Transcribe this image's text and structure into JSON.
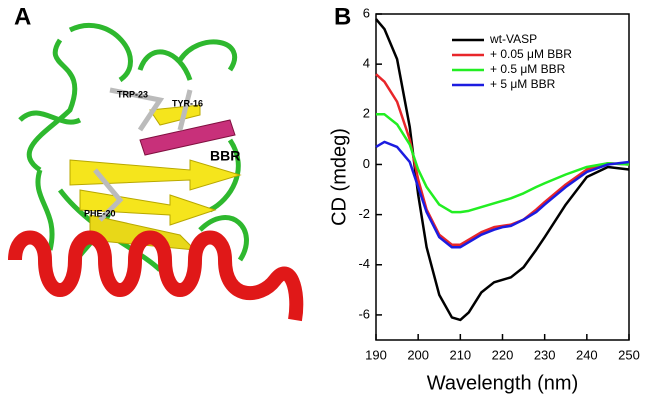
{
  "panels": [
    "A",
    "B"
  ],
  "structure": {
    "labels": [
      "TRP-23",
      "TYR-16",
      "BBR",
      "PHE-20"
    ]
  },
  "chart_data": {
    "type": "line",
    "x_label": "Wavelength (nm)",
    "y_label": "CD (mdeg)",
    "x": [
      190,
      192,
      195,
      198,
      200,
      202,
      205,
      208,
      210,
      212,
      215,
      218,
      220,
      222,
      225,
      228,
      230,
      235,
      240,
      245,
      250
    ],
    "series": [
      {
        "name": "wt-VASP",
        "color": "#000000",
        "values": [
          5.8,
          5.4,
          4.2,
          1.5,
          -1.2,
          -3.3,
          -5.2,
          -6.1,
          -6.2,
          -5.9,
          -5.1,
          -4.7,
          -4.6,
          -4.5,
          -4.1,
          -3.4,
          -2.9,
          -1.6,
          -0.5,
          -0.1,
          -0.2
        ]
      },
      {
        "name": "+ 0.05 μM BBR",
        "color": "#e8262a",
        "values": [
          3.6,
          3.3,
          2.5,
          1.0,
          -0.6,
          -1.8,
          -2.8,
          -3.2,
          -3.2,
          -3.0,
          -2.7,
          -2.5,
          -2.45,
          -2.4,
          -2.2,
          -1.8,
          -1.5,
          -0.8,
          -0.2,
          0.05,
          0.0
        ]
      },
      {
        "name": "+ 0.5 μM BBR",
        "color": "#22ee22",
        "values": [
          2.0,
          2.0,
          1.6,
          0.8,
          -0.2,
          -0.9,
          -1.6,
          -1.9,
          -1.9,
          -1.85,
          -1.7,
          -1.55,
          -1.45,
          -1.35,
          -1.15,
          -0.9,
          -0.75,
          -0.4,
          -0.1,
          0.05,
          0.0
        ]
      },
      {
        "name": "+ 5 μM BBR",
        "color": "#1c1ce0",
        "values": [
          0.7,
          0.9,
          0.7,
          0.1,
          -0.9,
          -1.9,
          -2.9,
          -3.3,
          -3.3,
          -3.1,
          -2.8,
          -2.6,
          -2.5,
          -2.45,
          -2.2,
          -1.9,
          -1.6,
          -0.9,
          -0.3,
          0.0,
          0.1
        ]
      }
    ],
    "xlim": [
      190,
      250
    ],
    "xticks": [
      190,
      200,
      210,
      220,
      230,
      240,
      250
    ],
    "ylim": [
      -7,
      6
    ],
    "yticks": [
      -6,
      -4,
      -2,
      0,
      2,
      4,
      6
    ],
    "legend": "upper right"
  }
}
